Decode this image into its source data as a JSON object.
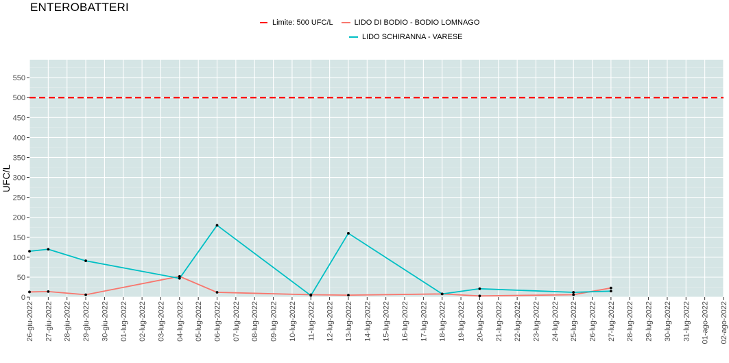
{
  "chart_data": {
    "type": "line",
    "title": "ENTEROBATTERI",
    "ylabel": "UFC/L",
    "xlabel": "",
    "ylim": [
      0,
      595
    ],
    "yticks": [
      0,
      50,
      100,
      150,
      200,
      250,
      300,
      350,
      400,
      450,
      500,
      550
    ],
    "x_ticks": [
      "26-giu-2022",
      "27-giu-2022",
      "28-giu-2022",
      "29-giu-2022",
      "30-giu-2022",
      "01-lug-2022",
      "02-lug-2022",
      "03-lug-2022",
      "04-lug-2022",
      "05-lug-2022",
      "06-lug-2022",
      "07-lug-2022",
      "08-lug-2022",
      "09-lug-2022",
      "10-lug-2022",
      "11-lug-2022",
      "12-lug-2022",
      "13-lug-2022",
      "14-lug-2022",
      "15-lug-2022",
      "16-lug-2022",
      "17-lug-2022",
      "18-lug-2022",
      "19-lug-2022",
      "20-lug-2022",
      "21-lug-2022",
      "22-lug-2022",
      "23-lug-2022",
      "24-lug-2022",
      "25-lug-2022",
      "26-lug-2022",
      "27-lug-2022",
      "28-lug-2022",
      "29-lug-2022",
      "30-lug-2022",
      "31-lug-2022",
      "01-ago-2022",
      "02-ago-2022"
    ],
    "threshold": {
      "name": "Limite: 500 UFC/L",
      "value": 500,
      "color": "#ff0000"
    },
    "series": [
      {
        "name": "LIDO DI BODIO - BODIO LOMNAGO",
        "color": "#f8766d",
        "points": [
          {
            "x": "26-giu-2022",
            "y": 13
          },
          {
            "x": "27-giu-2022",
            "y": 14
          },
          {
            "x": "29-giu-2022",
            "y": 6
          },
          {
            "x": "04-lug-2022",
            "y": 52
          },
          {
            "x": "06-lug-2022",
            "y": 12
          },
          {
            "x": "11-lug-2022",
            "y": 6
          },
          {
            "x": "13-lug-2022",
            "y": 5
          },
          {
            "x": "18-lug-2022",
            "y": 8
          },
          {
            "x": "20-lug-2022",
            "y": 3
          },
          {
            "x": "25-lug-2022",
            "y": 6
          },
          {
            "x": "27-lug-2022",
            "y": 23
          }
        ]
      },
      {
        "name": "LIDO SCHIRANNA - VARESE",
        "color": "#00bfc4",
        "points": [
          {
            "x": "26-giu-2022",
            "y": 115
          },
          {
            "x": "27-giu-2022",
            "y": 120
          },
          {
            "x": "29-giu-2022",
            "y": 91
          },
          {
            "x": "04-lug-2022",
            "y": 47
          },
          {
            "x": "06-lug-2022",
            "y": 180
          },
          {
            "x": "11-lug-2022",
            "y": 4
          },
          {
            "x": "13-lug-2022",
            "y": 160
          },
          {
            "x": "18-lug-2022",
            "y": 8
          },
          {
            "x": "20-lug-2022",
            "y": 21
          },
          {
            "x": "25-lug-2022",
            "y": 12
          },
          {
            "x": "27-lug-2022",
            "y": 15
          }
        ]
      }
    ],
    "grid": true,
    "legend_position": "top-center"
  },
  "legend": {
    "threshold_label": "Limite: 500 UFC/L",
    "series1_label": "LIDO DI BODIO - BODIO LOMNAGO",
    "series2_label": "LIDO SCHIRANNA - VARESE"
  }
}
